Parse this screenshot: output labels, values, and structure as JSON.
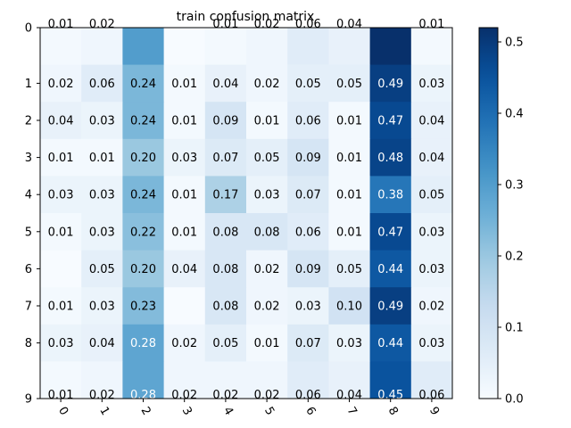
{
  "chart_data": {
    "type": "heatmap",
    "title": "train confusion matrix",
    "xlabel": "",
    "ylabel": "",
    "x_categories": [
      "0",
      "1",
      "2",
      "3",
      "4",
      "5",
      "6",
      "7",
      "8",
      "9"
    ],
    "y_categories": [
      "0",
      "1",
      "2",
      "3",
      "4",
      "5",
      "6",
      "7",
      "8",
      "9"
    ],
    "matrix": [
      [
        0.01,
        0.02,
        0.3,
        0.0,
        0.01,
        0.02,
        0.06,
        0.04,
        0.52,
        0.01
      ],
      [
        0.02,
        0.06,
        0.24,
        0.01,
        0.04,
        0.02,
        0.05,
        0.05,
        0.49,
        0.03
      ],
      [
        0.04,
        0.03,
        0.24,
        0.01,
        0.09,
        0.01,
        0.06,
        0.01,
        0.47,
        0.04
      ],
      [
        0.01,
        0.01,
        0.2,
        0.03,
        0.07,
        0.05,
        0.09,
        0.01,
        0.48,
        0.04
      ],
      [
        0.03,
        0.03,
        0.24,
        0.01,
        0.17,
        0.03,
        0.07,
        0.01,
        0.38,
        0.05
      ],
      [
        0.01,
        0.03,
        0.22,
        0.01,
        0.08,
        0.08,
        0.06,
        0.01,
        0.47,
        0.03
      ],
      [
        0.0,
        0.05,
        0.2,
        0.04,
        0.08,
        0.02,
        0.09,
        0.05,
        0.44,
        0.03
      ],
      [
        0.01,
        0.03,
        0.23,
        0.0,
        0.08,
        0.02,
        0.03,
        0.1,
        0.49,
        0.02
      ],
      [
        0.03,
        0.04,
        0.28,
        0.02,
        0.05,
        0.01,
        0.07,
        0.03,
        0.44,
        0.03
      ],
      [
        0.01,
        0.02,
        0.28,
        0.02,
        0.02,
        0.02,
        0.06,
        0.04,
        0.45,
        0.06
      ]
    ],
    "label_visible": [
      [
        true,
        true,
        false,
        false,
        true,
        true,
        true,
        true,
        false,
        true
      ],
      [
        true,
        true,
        true,
        true,
        true,
        true,
        true,
        true,
        true,
        true
      ],
      [
        true,
        true,
        true,
        true,
        true,
        true,
        true,
        true,
        true,
        true
      ],
      [
        true,
        true,
        true,
        true,
        true,
        true,
        true,
        true,
        true,
        true
      ],
      [
        true,
        true,
        true,
        true,
        true,
        true,
        true,
        true,
        true,
        true
      ],
      [
        true,
        true,
        true,
        true,
        true,
        true,
        true,
        true,
        true,
        true
      ],
      [
        false,
        true,
        true,
        true,
        true,
        true,
        true,
        true,
        true,
        true
      ],
      [
        true,
        true,
        true,
        false,
        true,
        true,
        true,
        true,
        true,
        true
      ],
      [
        true,
        true,
        true,
        true,
        true,
        true,
        true,
        true,
        true,
        true
      ],
      [
        true,
        true,
        true,
        true,
        true,
        true,
        true,
        true,
        true,
        true
      ]
    ],
    "colormap": "Blues",
    "color_range": [
      0.0,
      0.52
    ],
    "colorbar_ticks": [
      0.0,
      0.1,
      0.2,
      0.3,
      0.4,
      0.5
    ],
    "x_tick_rotation": "45 degrees",
    "grid": false,
    "legend": "colorbar at right"
  }
}
